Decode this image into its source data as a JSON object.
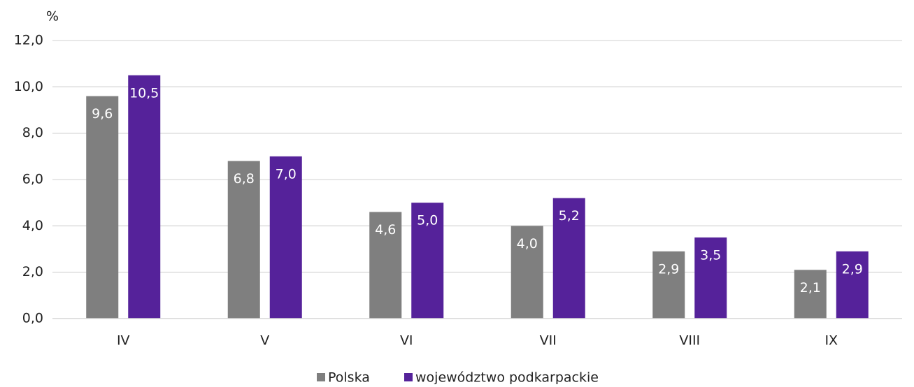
{
  "chart_data": {
    "type": "bar",
    "y_label": "%",
    "categories": [
      "IV",
      "V",
      "VI",
      "VII",
      "VIII",
      "IX"
    ],
    "series": [
      {
        "name": "Polska",
        "color": "#7f7f7f",
        "values": [
          9.6,
          6.8,
          4.6,
          4.0,
          2.9,
          2.1
        ],
        "value_labels": [
          "9,6",
          "6,8",
          "4,6",
          "4,0",
          "2,9",
          "2,1"
        ]
      },
      {
        "name": "województwo podkarpackie",
        "color": "#55229a",
        "values": [
          10.5,
          7.0,
          5.0,
          5.2,
          3.5,
          2.9
        ],
        "value_labels": [
          "10,5",
          "7,0",
          "5,0",
          "5,2",
          "3,5",
          "2,9"
        ]
      }
    ],
    "ylim": [
      0,
      12
    ],
    "yticks": [
      {
        "value": 0,
        "label": "0,0"
      },
      {
        "value": 2,
        "label": "2,0"
      },
      {
        "value": 4,
        "label": "4,0"
      },
      {
        "value": 6,
        "label": "6,0"
      },
      {
        "value": 8,
        "label": "8,0"
      },
      {
        "value": 10,
        "label": "10,0"
      },
      {
        "value": 12,
        "label": "12,0"
      }
    ],
    "grid": true,
    "legend": "bottom"
  }
}
